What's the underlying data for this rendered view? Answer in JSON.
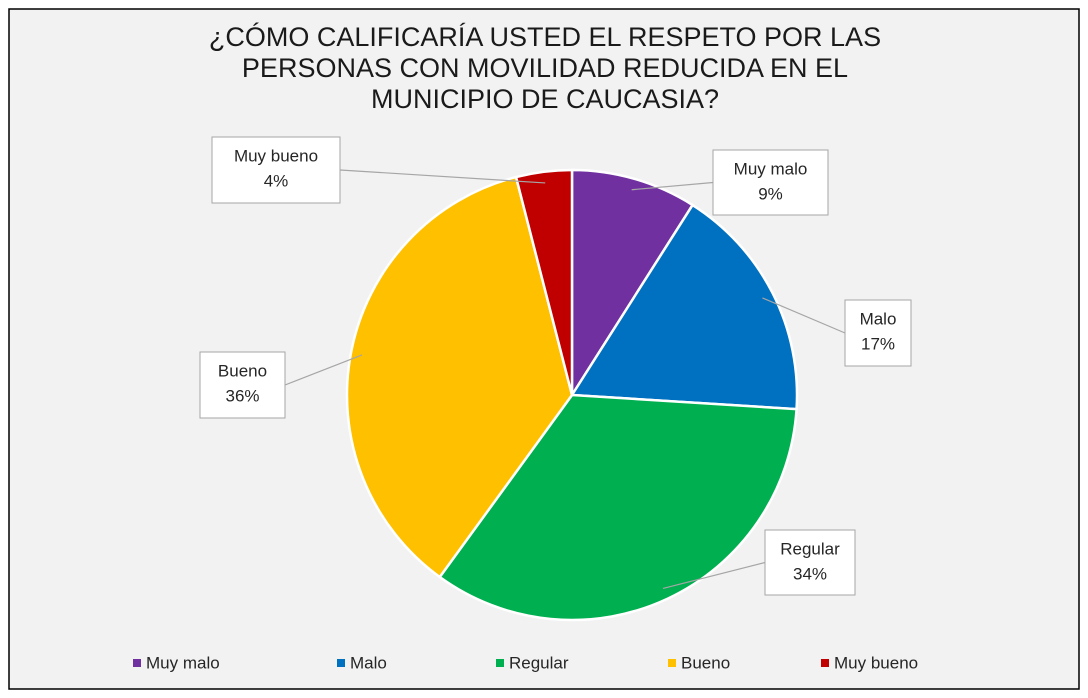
{
  "chart_data": {
    "type": "pie",
    "title": "¿CÓMO CALIFICARÍA USTED EL RESPETO POR LAS\nPERSONAS CON MOVILIDAD REDUCIDA EN EL\nMUNICIPIO DE CAUCASIA?",
    "categories": [
      "Muy malo",
      "Malo",
      "Regular",
      "Bueno",
      "Muy bueno"
    ],
    "values": [
      9,
      17,
      34,
      36,
      4
    ],
    "value_labels": [
      "9%",
      "17%",
      "34%",
      "36%",
      "4%"
    ],
    "colors": [
      "#7030a0",
      "#0070c0",
      "#00b050",
      "#ffc000",
      "#c00000"
    ],
    "legend": "bottom"
  }
}
